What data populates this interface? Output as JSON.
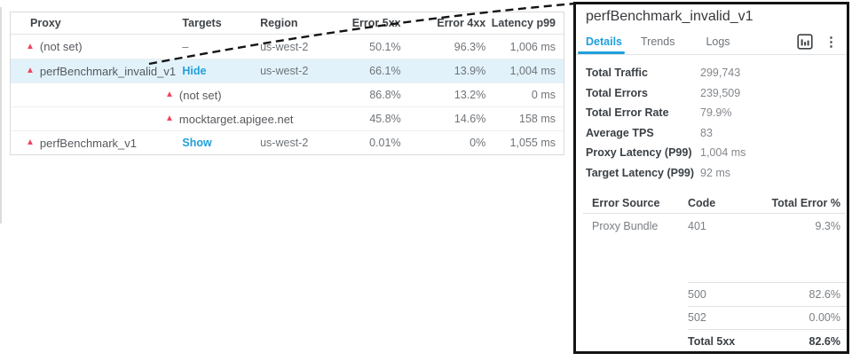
{
  "colors": {
    "accent_blue": "#1f9fdb",
    "alert_pink": "#f0455e",
    "selected_row_bg": "#e2f2fa",
    "panel_border": "#141414"
  },
  "table": {
    "columns": [
      "Proxy",
      "Targets",
      "Region",
      "Error 5xx",
      "Error 4xx",
      "Latency p99"
    ],
    "rows": [
      {
        "type": "proxy",
        "alert": true,
        "proxy": "(not set)",
        "targets_text": "–",
        "region": "us-west-2",
        "error_5xx": "50.1%",
        "error_4xx": "96.3%",
        "latency_p99": "1,006 ms",
        "selected": false
      },
      {
        "type": "proxy",
        "alert": true,
        "proxy": "perfBenchmark_invalid_v1",
        "link": "Hide",
        "region": "us-west-2",
        "error_5xx": "66.1%",
        "error_4xx": "13.9%",
        "latency_p99": "1,004 ms",
        "selected": true
      },
      {
        "type": "target",
        "alert": true,
        "target": "(not set)",
        "error_5xx": "86.8%",
        "error_4xx": "13.2%",
        "latency_p99": "0 ms"
      },
      {
        "type": "target",
        "alert": true,
        "target": "mocktarget.apigee.net",
        "error_5xx": "45.8%",
        "error_4xx": "14.6%",
        "latency_p99": "158 ms"
      },
      {
        "type": "proxy",
        "alert": true,
        "proxy": "perfBenchmark_v1",
        "link": "Show",
        "region": "us-west-2",
        "error_5xx": "0.01%",
        "error_4xx": "0%",
        "latency_p99": "1,055 ms",
        "selected": false
      }
    ]
  },
  "panel": {
    "title": "perfBenchmark_invalid_v1",
    "tabs": [
      {
        "label": "Details",
        "active": true
      },
      {
        "label": "Trends",
        "active": false
      },
      {
        "label": "Logs",
        "active": false
      }
    ],
    "actions": [
      {
        "icon": "bar-chart-icon"
      },
      {
        "icon": "kebab-menu-icon"
      }
    ],
    "metrics": [
      {
        "label": "Total Traffic",
        "value": "299,743"
      },
      {
        "label": "Total Errors",
        "value": "239,509"
      },
      {
        "label": "Total Error Rate",
        "value": "79.9%"
      },
      {
        "label": "Average TPS",
        "value": "83"
      },
      {
        "label": "Proxy Latency (P99)",
        "value": "1,004 ms"
      },
      {
        "label": "Target Latency (P99)",
        "value": "92 ms"
      }
    ],
    "error_table": {
      "headers": [
        "Error Source",
        "Code",
        "Total Error %"
      ],
      "rows": [
        {
          "source": "Proxy Bundle",
          "code": "401",
          "pct": "9.3%",
          "layout": "full"
        },
        {
          "code": "500",
          "pct": "82.6%",
          "layout": "seg",
          "gap_before": true
        },
        {
          "code": "502",
          "pct": "0.00%",
          "layout": "seg"
        },
        {
          "code": "Total 5xx",
          "pct": "82.6%",
          "layout": "seg",
          "emphasis": true
        }
      ]
    }
  }
}
